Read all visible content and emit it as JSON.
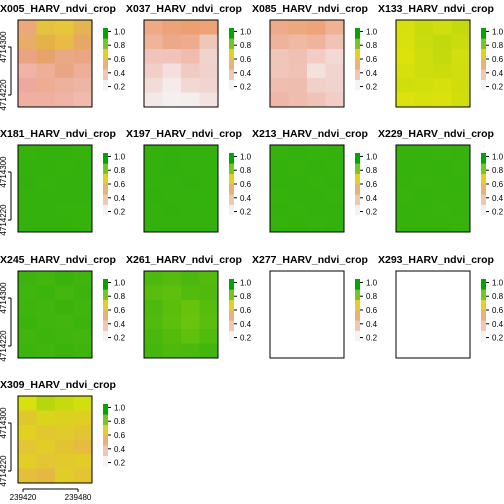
{
  "chart_data": {
    "type": "heatmap",
    "legend": {
      "ticks": [
        "0.2",
        "0.4",
        "0.6",
        "0.8",
        "1.0"
      ],
      "range": [
        0.15,
        1.05
      ]
    },
    "y_ticks": [
      "4714220",
      "4714300"
    ],
    "x_ticks": [
      "239420",
      "239480"
    ],
    "panels": [
      {
        "title": "X005_HARV_ndvi_crop",
        "show_y_axis": true,
        "show_x_axis": false,
        "empty": false,
        "ramp": [
          "#f3f3f3",
          "#efc7b5",
          "#e6b47a",
          "#e0d027",
          "#79c51f",
          "#00a600"
        ],
        "grid": [
          [
            "#eba87a",
            "#e3c340",
            "#e6c63a",
            "#e3b44f"
          ],
          [
            "#e9ad6a",
            "#e4b347",
            "#e8ba46",
            "#e8a865"
          ],
          [
            "#eca383",
            "#e6a46c",
            "#eba983",
            "#eca583"
          ],
          [
            "#efb3a8",
            "#eeaf97",
            "#eaa684",
            "#eeaf96"
          ],
          [
            "#eda99f",
            "#eeac92",
            "#eeb19d",
            "#efb5a4"
          ],
          [
            "#eeb0a0",
            "#efb0a1",
            "#eeb4a5",
            "#f0baac"
          ]
        ]
      },
      {
        "title": "X037_HARV_ndvi_crop",
        "show_y_axis": false,
        "show_x_axis": false,
        "empty": false,
        "ramp": [
          "#f3f3f3",
          "#efc7b5",
          "#e6b47a",
          "#e0d027",
          "#79c51f",
          "#00a600"
        ],
        "grid": [
          [
            "#eeaa87",
            "#eba47a",
            "#ec9f71",
            "#eda278"
          ],
          [
            "#eeb59b",
            "#eca889",
            "#eeac8e",
            "#efc7b8"
          ],
          [
            "#f0c5bc",
            "#f0c4b8",
            "#efbcae",
            "#f1d3cd"
          ],
          [
            "#f1cfc8",
            "#f3e0dd",
            "#f0cbc3",
            "#f1d1cc"
          ],
          [
            "#f2dcd8",
            "#f4ebea",
            "#f1d8d3",
            "#f1d4cf"
          ],
          [
            "#f3e9e7",
            "#f5f0ef",
            "#f4eeed",
            "#f3e2df"
          ]
        ]
      },
      {
        "title": "X085_HARV_ndvi_crop",
        "show_y_axis": false,
        "show_x_axis": false,
        "empty": false,
        "ramp": [
          "#f3f3f3",
          "#efc7b5",
          "#e6b47a",
          "#e0d027",
          "#79c51f",
          "#00a600"
        ],
        "grid": [
          [
            "#eeab89",
            "#ebaa7c",
            "#eda47b",
            "#eeb395"
          ],
          [
            "#eeb39a",
            "#efbaa4",
            "#eeb49c",
            "#efc4b6"
          ],
          [
            "#f0c6bb",
            "#efc0b4",
            "#f1cdc6",
            "#f2d9d6"
          ],
          [
            "#f0c6ba",
            "#f0c2b6",
            "#f3e1de",
            "#f2d4cf"
          ],
          [
            "#efbeb0",
            "#efbcb0",
            "#f1d0ca",
            "#f1d3ce"
          ],
          [
            "#efb7a8",
            "#f0bcae",
            "#efc3b8",
            "#f1cdc6"
          ]
        ]
      },
      {
        "title": "X133_HARV_ndvi_crop",
        "show_y_axis": false,
        "show_x_axis": false,
        "empty": false,
        "ramp": [
          "#f3f3f3",
          "#efc7b5",
          "#e6b47a",
          "#e0d027",
          "#79c51f",
          "#00a600"
        ],
        "grid": [
          [
            "#d7e00d",
            "#c7db0d",
            "#d1de0d",
            "#c5da0d"
          ],
          [
            "#d9e10d",
            "#c9dc0d",
            "#c1d90d",
            "#cadc0d"
          ],
          [
            "#dde20d",
            "#cddd0d",
            "#c5da0d",
            "#d2de0d"
          ],
          [
            "#d6e00d",
            "#cedd0d",
            "#cadc0d",
            "#d0de0d"
          ],
          [
            "#d1de0d",
            "#d3df0d",
            "#d6e00d",
            "#cfdd0d"
          ],
          [
            "#dbe20d",
            "#d8e00d",
            "#dae10d",
            "#d1de0d"
          ]
        ]
      },
      {
        "title": "X181_HARV_ndvi_crop",
        "show_y_axis": true,
        "show_x_axis": false,
        "empty": false,
        "ramp": [
          "#f3f3f3",
          "#efc7b5",
          "#e6b47a",
          "#e0d027",
          "#79c51f",
          "#00a600"
        ],
        "grid": [
          [
            "#37b20d",
            "#35b10d",
            "#34b10d",
            "#36b20d"
          ],
          [
            "#33b10d",
            "#35b10d",
            "#36b20d",
            "#34b10d"
          ],
          [
            "#32b00d",
            "#36b20d",
            "#34b10d",
            "#35b10d"
          ],
          [
            "#34b10d",
            "#33b10d",
            "#35b10d",
            "#33b10d"
          ],
          [
            "#35b10d",
            "#34b10d",
            "#36b20d",
            "#37b20d"
          ],
          [
            "#34b10d",
            "#35b10d",
            "#33b10d",
            "#36b20d"
          ]
        ]
      },
      {
        "title": "X197_HARV_ndvi_crop",
        "show_y_axis": false,
        "show_x_axis": false,
        "empty": false,
        "ramp": [
          "#f3f3f3",
          "#efc7b5",
          "#e6b47a",
          "#e0d027",
          "#79c51f",
          "#00a600"
        ],
        "grid": [
          [
            "#33b10d",
            "#33b00d",
            "#35b10d",
            "#34b10d"
          ],
          [
            "#34b10d",
            "#32b00d",
            "#34b10d",
            "#33b10d"
          ],
          [
            "#33b10d",
            "#34b10d",
            "#33b00d",
            "#35b10d"
          ],
          [
            "#32b00d",
            "#34b10d",
            "#33b10d",
            "#34b10d"
          ],
          [
            "#34b10d",
            "#33b00d",
            "#34b10d",
            "#33b10d"
          ],
          [
            "#33b10d",
            "#34b10d",
            "#35b10d",
            "#34b10d"
          ]
        ]
      },
      {
        "title": "X213_HARV_ndvi_crop",
        "show_y_axis": false,
        "show_x_axis": false,
        "empty": false,
        "ramp": [
          "#f3f3f3",
          "#efc7b5",
          "#e6b47a",
          "#e0d027",
          "#79c51f",
          "#00a600"
        ],
        "grid": [
          [
            "#36b20d",
            "#35b10d",
            "#36b20d",
            "#35b10d"
          ],
          [
            "#35b10d",
            "#37b20d",
            "#35b10d",
            "#36b20d"
          ],
          [
            "#34b10d",
            "#35b10d",
            "#36b20d",
            "#35b10d"
          ],
          [
            "#36b20d",
            "#34b10d",
            "#35b10d",
            "#37b20d"
          ],
          [
            "#35b10d",
            "#36b20d",
            "#34b10d",
            "#35b10d"
          ],
          [
            "#36b20d",
            "#35b10d",
            "#36b20d",
            "#35b10d"
          ]
        ]
      },
      {
        "title": "X229_HARV_ndvi_crop",
        "show_y_axis": false,
        "show_x_axis": false,
        "empty": false,
        "ramp": [
          "#f3f3f3",
          "#efc7b5",
          "#e6b47a",
          "#e0d027",
          "#79c51f",
          "#00a600"
        ],
        "grid": [
          [
            "#37b20d",
            "#36b20d",
            "#38b20d",
            "#37b20d"
          ],
          [
            "#36b20d",
            "#37b20d",
            "#36b20d",
            "#38b20d"
          ],
          [
            "#37b20d",
            "#38b20d",
            "#37b20d",
            "#36b20d"
          ],
          [
            "#38b20d",
            "#36b20d",
            "#37b20d",
            "#37b20d"
          ],
          [
            "#36b20d",
            "#37b20d",
            "#38b20d",
            "#36b20d"
          ],
          [
            "#37b20d",
            "#36b20d",
            "#37b20d",
            "#38b20d"
          ]
        ]
      },
      {
        "title": "X245_HARV_ndvi_crop",
        "show_y_axis": true,
        "show_x_axis": false,
        "empty": false,
        "ramp": [
          "#f3f3f3",
          "#efc7b5",
          "#e6b47a",
          "#e0d027",
          "#79c51f",
          "#00a600"
        ],
        "grid": [
          [
            "#3cb40d",
            "#42b60d",
            "#3ab30d",
            "#3fb50d"
          ],
          [
            "#40b50d",
            "#3bb40d",
            "#44b60d",
            "#3db40d"
          ],
          [
            "#3eb40d",
            "#41b50d",
            "#3cb30d",
            "#40b50d"
          ],
          [
            "#3ab30d",
            "#3fb50d",
            "#42b60d",
            "#3bb40d"
          ],
          [
            "#41b50d",
            "#3db40d",
            "#3fb50d",
            "#43b60d"
          ],
          [
            "#3db40d",
            "#40b50d",
            "#3bb30d",
            "#3eb40d"
          ]
        ]
      },
      {
        "title": "X261_HARV_ndvi_crop",
        "show_y_axis": false,
        "show_x_axis": false,
        "empty": false,
        "ramp": [
          "#f3f3f3",
          "#efc7b5",
          "#e6b47a",
          "#e0d027",
          "#79c51f",
          "#00a600"
        ],
        "grid": [
          [
            "#4cb90d",
            "#55bc0d",
            "#4ab80d",
            "#52bb0d"
          ],
          [
            "#58bd0d",
            "#5ebf0d",
            "#53bb0d",
            "#4fba0d"
          ],
          [
            "#4db90d",
            "#5abe0d",
            "#66c20d",
            "#56bc0d"
          ],
          [
            "#51ba0d",
            "#5cbf0d",
            "#6ac30d",
            "#5bbe0d"
          ],
          [
            "#48b80d",
            "#54bb0d",
            "#5fc00d",
            "#50ba0d"
          ],
          [
            "#44b70d",
            "#4eb90d",
            "#4ab80d",
            "#42b60d"
          ]
        ]
      },
      {
        "title": "X277_HARV_ndvi_crop",
        "show_y_axis": false,
        "show_x_axis": false,
        "empty": true,
        "ramp": [
          "#f3f3f3",
          "#efc7b5",
          "#e6b47a",
          "#e0d027",
          "#79c51f",
          "#00a600"
        ],
        "grid": []
      },
      {
        "title": "X293_HARV_ndvi_crop",
        "show_y_axis": false,
        "show_x_axis": false,
        "empty": true,
        "ramp": [
          "#f3f3f3",
          "#efc7b5",
          "#e6b47a",
          "#e0d027",
          "#79c51f",
          "#00a600"
        ],
        "grid": []
      },
      {
        "title": "X309_HARV_ndvi_crop",
        "show_y_axis": true,
        "show_x_axis": true,
        "empty": false,
        "ramp": [
          "#f3f3f3",
          "#efc7b5",
          "#e6b47a",
          "#e0d027",
          "#79c51f",
          "#00a600"
        ],
        "grid": [
          [
            "#d8e00d",
            "#b7d60d",
            "#c6db0d",
            "#d3df0d"
          ],
          [
            "#e0c82a",
            "#d9d51c",
            "#ddd11f",
            "#dfcf22"
          ],
          [
            "#e0d21f",
            "#e3c72f",
            "#e0cb2a",
            "#e3c431"
          ],
          [
            "#e4c535",
            "#e1cd27",
            "#e2c332",
            "#e6bb3f"
          ],
          [
            "#e1cf26",
            "#e4c534",
            "#e2c92c",
            "#e2cc28"
          ],
          [
            "#e5bf3c",
            "#e6b843",
            "#e1cd27",
            "#e4c433"
          ]
        ]
      }
    ]
  }
}
